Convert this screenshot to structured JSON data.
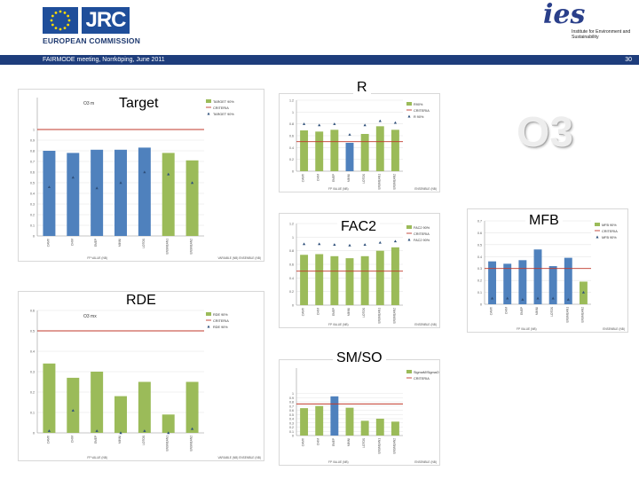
{
  "header": {
    "jrc_label": "JRC",
    "ec_label": "EUROPEAN COMMISSION",
    "ies_logo": "ies",
    "ies_text": "Institute for Environment and Sustainability",
    "band_title": "FAIRMODE meeting, Norrköping, June 2011",
    "page_number": "30"
  },
  "overlay_labels": {
    "target": "Target",
    "r": "R",
    "o3": "O3",
    "fac2": "FAC2",
    "mfb": "MFB",
    "rde": "RDE",
    "smso": "SM/SO"
  },
  "colors": {
    "blue": "#4f81bd",
    "green": "#9bbb59",
    "red": "#c0392b",
    "band": "#1e3d7c"
  },
  "chart_data": [
    {
      "id": "target",
      "type": "bar",
      "title": "Target",
      "panel_tag": "O3 m",
      "categories": [
        "CAMX",
        "CHIM",
        "EMEP",
        "MINNI",
        "LOTOS",
        "ENSMEAN1",
        "ENSMEAN2"
      ],
      "values": [
        0.8,
        0.78,
        0.81,
        0.81,
        0.83,
        0.78,
        0.71
      ],
      "bar_colors": [
        "blue",
        "blue",
        "blue",
        "blue",
        "blue",
        "green",
        "green"
      ],
      "markers": [
        0.46,
        0.55,
        0.45,
        0.5,
        0.6,
        0.58,
        0.5
      ],
      "criteria": 1.0,
      "ylim": [
        0,
        1.3
      ],
      "yticks": [
        0,
        0.1,
        0.2,
        0.3,
        0.4,
        0.5,
        0.6,
        0.7,
        0.8,
        0.9,
        1.0
      ],
      "legend": [
        "TARGET 90%",
        "CRITERIA",
        "TARGET 90%"
      ],
      "footer_left": "FP VALUE (NB)",
      "footer_right": "VARIABLE (NB)   ENSEMBLE (NB)"
    },
    {
      "id": "r",
      "type": "bar",
      "title": "R",
      "categories": [
        "CAMX",
        "CHIM",
        "EMEP",
        "MINNI",
        "LOTOS",
        "ENSMEAN1",
        "ENSMEAN2"
      ],
      "values": [
        0.69,
        0.67,
        0.7,
        0.48,
        0.63,
        0.76,
        0.7
      ],
      "bar_colors": [
        "green",
        "green",
        "green",
        "blue",
        "green",
        "green",
        "green"
      ],
      "markers": [
        0.8,
        0.78,
        0.8,
        0.62,
        0.78,
        0.85,
        0.82
      ],
      "criteria": 0.5,
      "ylim": [
        0,
        1.2
      ],
      "yticks": [
        0,
        0.2,
        0.4,
        0.6,
        0.8,
        1.0,
        1.2
      ],
      "legend": [
        "R90%",
        "CRITERIA",
        "R 90%"
      ],
      "footer_left": "FP VALUE (NB)",
      "footer_right": "ENSEMBLE (NB)"
    },
    {
      "id": "fac2",
      "type": "bar",
      "title": "FAC2",
      "categories": [
        "CAMX",
        "CHIM",
        "EMEP",
        "MINNI",
        "LOTOS",
        "ENSMEAN1",
        "ENSMEAN2"
      ],
      "values": [
        0.74,
        0.75,
        0.72,
        0.69,
        0.72,
        0.8,
        0.85
      ],
      "bar_colors": [
        "green",
        "green",
        "green",
        "green",
        "green",
        "green",
        "green"
      ],
      "markers": [
        0.9,
        0.9,
        0.89,
        0.88,
        0.89,
        0.92,
        0.94
      ],
      "criteria": 0.5,
      "ylim": [
        0,
        1.2
      ],
      "yticks": [
        0,
        0.2,
        0.4,
        0.6,
        0.8,
        1.0,
        1.2
      ],
      "legend": [
        "FAC2 90%",
        "CRITERIA",
        "FAC2 90%"
      ],
      "footer_left": "FP VALUE (NB)",
      "footer_right": "ENSEMBLE (NB)"
    },
    {
      "id": "mfb",
      "type": "bar",
      "title": "MFB",
      "categories": [
        "CAMX",
        "CHIM",
        "EMEP",
        "MINNI",
        "LOTOS",
        "ENSMEAN1",
        "ENSMEAN2"
      ],
      "values": [
        0.36,
        0.34,
        0.37,
        0.46,
        0.32,
        0.39,
        0.19
      ],
      "bar_colors": [
        "blue",
        "blue",
        "blue",
        "blue",
        "blue",
        "blue",
        "green"
      ],
      "markers": [
        0.05,
        0.05,
        0.04,
        0.05,
        0.05,
        0.04,
        0.1
      ],
      "criteria": 0.3,
      "ylim": [
        0,
        0.7
      ],
      "yticks": [
        0,
        0.1,
        0.2,
        0.3,
        0.4,
        0.5,
        0.6,
        0.7
      ],
      "legend": [
        "MFB 90%",
        "CRITERIA",
        "MFB 90%"
      ],
      "footer_left": "FP VALUE (NB)",
      "footer_right": "ENSEMBLE (NB)"
    },
    {
      "id": "rde",
      "type": "bar",
      "title": "RDE",
      "panel_tag": "O3 mx",
      "categories": [
        "CAMX",
        "CHIM",
        "EMEP",
        "MINNI",
        "LOTOS",
        "ENSMEAN1",
        "ENSMEAN2"
      ],
      "values": [
        0.34,
        0.27,
        0.3,
        0.18,
        0.25,
        0.09,
        0.25
      ],
      "bar_colors": [
        "green",
        "green",
        "green",
        "green",
        "green",
        "green",
        "green"
      ],
      "markers": [
        0.01,
        0.11,
        0.01,
        0.0,
        0.01,
        0.0,
        0.02
      ],
      "criteria": 0.5,
      "ylim": [
        0,
        0.6
      ],
      "yticks": [
        0,
        0.1,
        0.2,
        0.3,
        0.4,
        0.5,
        0.6
      ],
      "legend": [
        "RDE 90%",
        "CRITERIA",
        "RDE 90%"
      ],
      "footer_left": "FP VALUE (NB)",
      "footer_right": "VARIABLE (NB)   ENSEMBLE (NB)"
    },
    {
      "id": "smso",
      "type": "bar",
      "title": "SM/SO",
      "categories": [
        "CAMX",
        "CHIM",
        "EMEP",
        "MINNI",
        "LOTOS",
        "ENSMEAN1",
        "ENSMEAN2"
      ],
      "values": [
        0.65,
        0.7,
        0.93,
        0.66,
        0.35,
        0.4,
        0.33
      ],
      "bar_colors": [
        "green",
        "green",
        "blue",
        "green",
        "green",
        "green",
        "green"
      ],
      "markers": [],
      "criteria": 0.75,
      "ylim": [
        0,
        1.6
      ],
      "yticks": [
        0,
        0.1,
        0.2,
        0.3,
        0.4,
        0.5,
        0.6,
        0.7,
        0.8,
        0.9,
        1.0
      ],
      "legend": [
        "SigmaM/SigmaO",
        "CRITERIA"
      ],
      "footer_left": "FP VALUE (NB)",
      "footer_right": "ENSEMBLE (NB)"
    }
  ]
}
